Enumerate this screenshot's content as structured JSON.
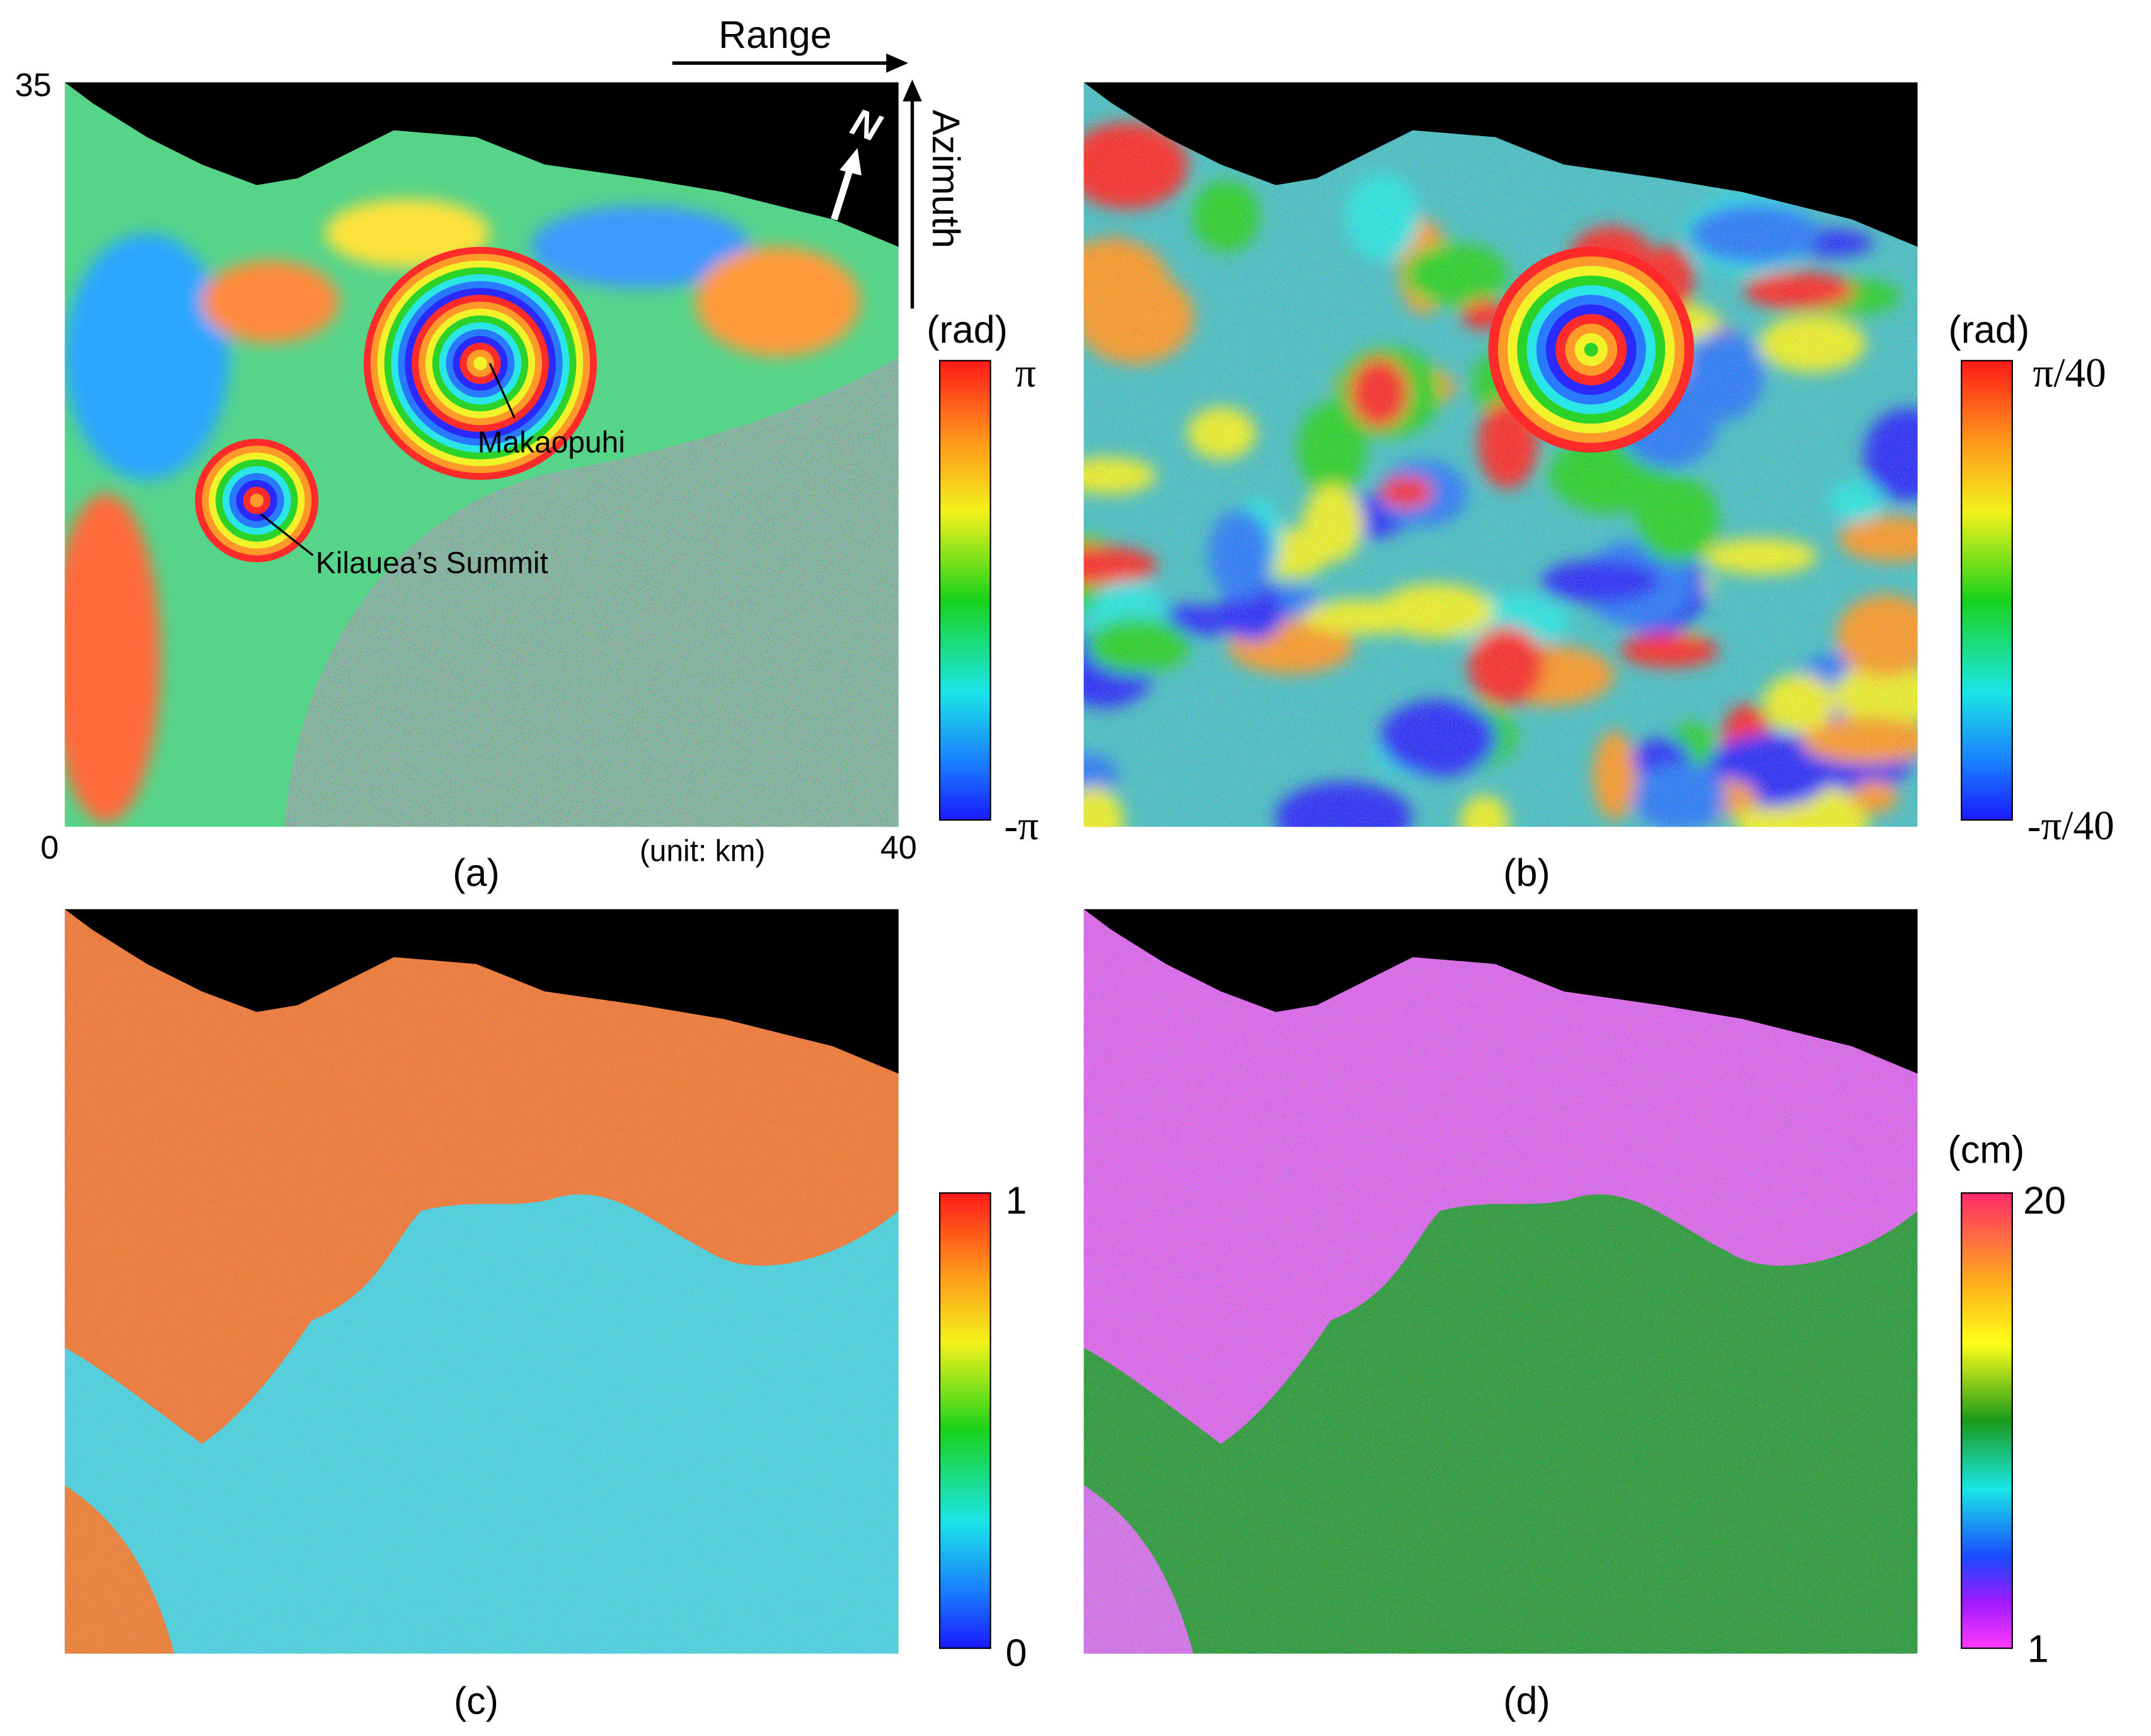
{
  "header": {
    "range_label": "Range",
    "azimuth_label": "Azimuth",
    "north_label": "N"
  },
  "axes": {
    "y_max": "35",
    "origin": "0",
    "x_max": "40",
    "unit": "(unit: km)"
  },
  "annotations": [
    "Makaopuhi",
    "Kilauea’s Summit"
  ],
  "panels": [
    {
      "label": "(a)",
      "colorbar": {
        "unit": "(rad)",
        "max": "π",
        "min": "-π"
      }
    },
    {
      "label": "(b)",
      "colorbar": {
        "unit": "(rad)",
        "max": "π/40",
        "min": "-π/40"
      }
    },
    {
      "label": "(c)",
      "colorbar": {
        "max": "1",
        "min": "0"
      }
    },
    {
      "label": "(d)",
      "colorbar": {
        "unit": "(cm)",
        "max": "20",
        "min": "1"
      }
    }
  ]
}
